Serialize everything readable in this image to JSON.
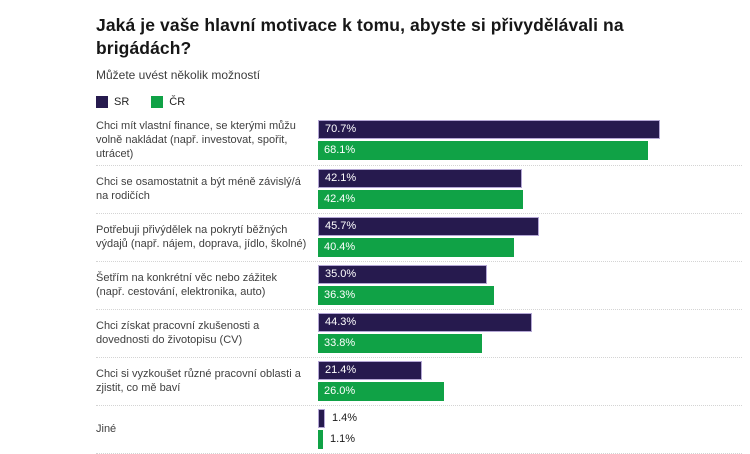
{
  "chart_data": {
    "type": "bar",
    "orientation": "horizontal",
    "title": "Jaká je vaše hlavní motivace k tomu, abyste si přivydělávali na brigádách?",
    "subtitle": "Můžete uvést několik možností",
    "categories": [
      "Chci mít vlastní finance, se kterými můžu volně nakládat (např. investovat, spořit, utrácet)",
      "Chci se osamostatnit a být méně závislý/á na rodičích",
      "Potřebuji přivýdělek na pokrytí běžných výdajů (např. nájem, doprava, jídlo, školné)",
      "Šetřím na konkrétní věc nebo zážitek (např. cestování, elektronika, auto)",
      "Chci získat pracovní zkušenosti a dovednosti do životopisu (CV)",
      "Chci si vyzkoušet různé pracovní oblasti a zjistit, co mě baví",
      "Jiné"
    ],
    "series": [
      {
        "name": "SR",
        "color": "#261a4e",
        "values": [
          70.7,
          42.1,
          45.7,
          35.0,
          44.3,
          21.4,
          1.4
        ]
      },
      {
        "name": "ČR",
        "color": "#10a246",
        "values": [
          68.1,
          42.4,
          40.4,
          36.3,
          33.8,
          26.0,
          1.1
        ]
      }
    ],
    "value_suffix": "%",
    "value_labels_shown": true,
    "xlim": [
      0,
      89
    ],
    "grid": false,
    "legend_position": "top-left"
  },
  "colors": {
    "sr_bar": "#261a4e",
    "cr_bar": "#10a246",
    "sr_bar_outline": "#b3a6d4",
    "title_text": "#161616",
    "label_text": "#404040",
    "bar_label_inside": "#ffffff",
    "bar_label_outside": "#1a1a1a",
    "separator": "#d4d4d4",
    "background": "#ffffff"
  }
}
